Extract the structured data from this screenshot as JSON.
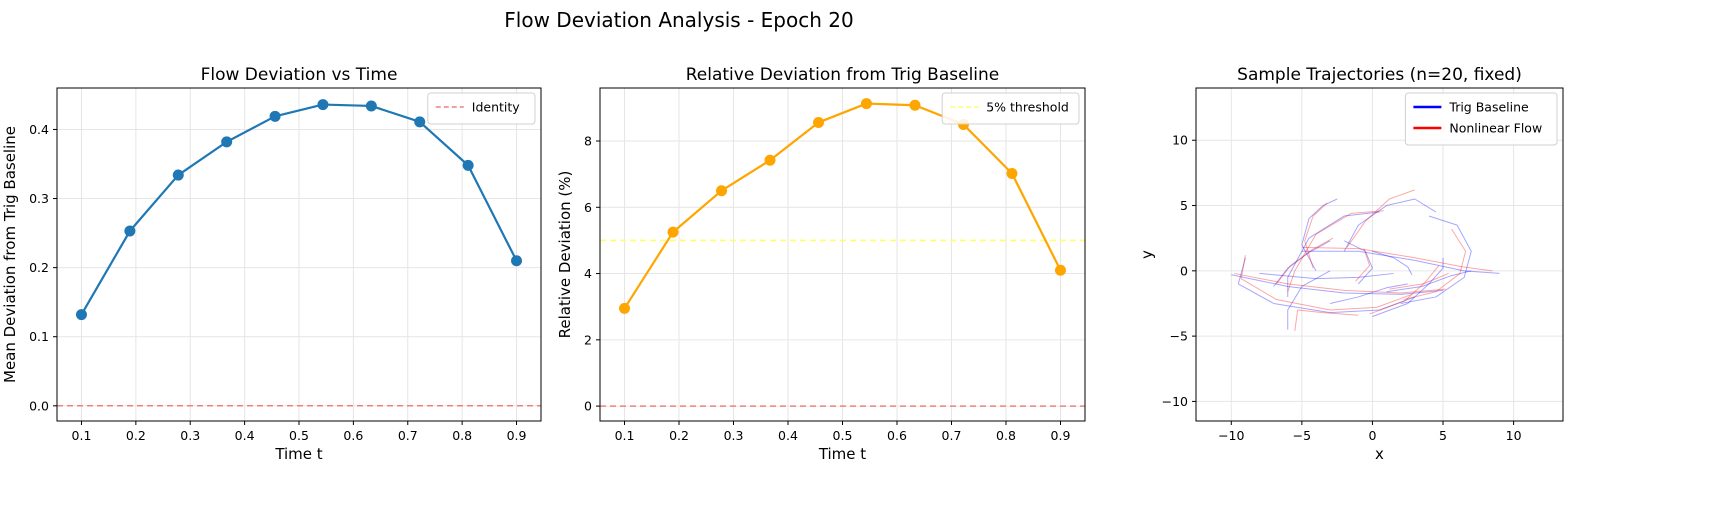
{
  "figure": {
    "suptitle": "Flow Deviation Analysis - Epoch 20"
  },
  "chart_data": [
    {
      "type": "line",
      "title": "Flow Deviation vs Time",
      "xlabel": "Time t",
      "ylabel": "Mean Deviation from Trig Baseline",
      "xlim": [
        0.055,
        0.945
      ],
      "ylim": [
        -0.022,
        0.46
      ],
      "xticks": [
        0.1,
        0.2,
        0.3,
        0.4,
        0.5,
        0.6,
        0.7,
        0.8,
        0.9
      ],
      "xtick_labels": [
        "0.1",
        "0.2",
        "0.3",
        "0.4",
        "0.5",
        "0.6",
        "0.7",
        "0.8",
        "0.9"
      ],
      "yticks": [
        0.0,
        0.1,
        0.2,
        0.3,
        0.4
      ],
      "ytick_labels": [
        "0.0",
        "0.1",
        "0.2",
        "0.3",
        "0.4"
      ],
      "grid": true,
      "legend": "top-right",
      "series": [
        {
          "values_x": [
            0.1,
            0.189,
            0.278,
            0.367,
            0.456,
            0.544,
            0.633,
            0.722,
            0.811,
            0.9
          ],
          "values_y": [
            0.132,
            0.253,
            0.334,
            0.382,
            0.419,
            0.436,
            0.434,
            0.411,
            0.348,
            0.21
          ],
          "color": "#1f77b4",
          "marker": "circle"
        }
      ],
      "reference_lines": [
        {
          "name": "Identity",
          "y": 0.0,
          "color": "#f08080",
          "style": "dashed"
        }
      ]
    },
    {
      "type": "line",
      "title": "Relative Deviation from Trig Baseline",
      "xlabel": "Time t",
      "ylabel": "Relative Deviation (%)",
      "xlim": [
        0.055,
        0.945
      ],
      "ylim": [
        -0.45,
        9.6
      ],
      "xticks": [
        0.1,
        0.2,
        0.3,
        0.4,
        0.5,
        0.6,
        0.7,
        0.8,
        0.9
      ],
      "xtick_labels": [
        "0.1",
        "0.2",
        "0.3",
        "0.4",
        "0.5",
        "0.6",
        "0.7",
        "0.8",
        "0.9"
      ],
      "yticks": [
        0,
        2,
        4,
        6,
        8
      ],
      "ytick_labels": [
        "0",
        "2",
        "4",
        "6",
        "8"
      ],
      "grid": true,
      "legend": "top-right",
      "series": [
        {
          "values_x": [
            0.1,
            0.189,
            0.278,
            0.367,
            0.456,
            0.544,
            0.633,
            0.722,
            0.811,
            0.9
          ],
          "values_y": [
            2.95,
            5.25,
            6.5,
            7.42,
            8.56,
            9.13,
            9.08,
            8.5,
            7.02,
            4.1
          ],
          "color": "#ffa500",
          "marker": "circle"
        }
      ],
      "reference_lines": [
        {
          "name": "5% threshold",
          "y": 5.0,
          "color": "#ffff66",
          "style": "dashed"
        },
        {
          "name": "",
          "y": 0.0,
          "color": "#f08080",
          "style": "dashed"
        }
      ]
    },
    {
      "type": "line",
      "title": "Sample Trajectories (n=20, fixed)",
      "xlabel": "x",
      "ylabel": "y",
      "xlim": [
        -12.5,
        13.5
      ],
      "ylim": [
        -11.5,
        14
      ],
      "xticks": [
        -10,
        -5,
        0,
        5,
        10
      ],
      "xtick_labels": [
        "−10",
        "−5",
        "0",
        "5",
        "10"
      ],
      "yticks": [
        -10,
        -5,
        0,
        5,
        10
      ],
      "ytick_labels": [
        "−10",
        "−5",
        "0",
        "5",
        "10"
      ],
      "grid": true,
      "legend": "top-right",
      "series": [
        {
          "name": "Trig Baseline",
          "color": "#0000ff",
          "trajectories": [
            [
              [
                -9,
                1
              ],
              [
                -9.5,
                -1
              ],
              [
                -7,
                -2.5
              ],
              [
                -3,
                -3.2
              ],
              [
                0.5,
                -3
              ],
              [
                3,
                -2
              ]
            ],
            [
              [
                -10,
                -0.3
              ],
              [
                -6,
                -1.2
              ],
              [
                -2,
                -1.7
              ],
              [
                2,
                -1.8
              ],
              [
                5,
                -1.5
              ]
            ],
            [
              [
                -6,
                -2
              ],
              [
                -6,
                -0.5
              ],
              [
                -4.5,
                2.5
              ],
              [
                -2,
                4.2
              ],
              [
                0.5,
                4.5
              ]
            ],
            [
              [
                -4,
                0
              ],
              [
                -5,
                2
              ],
              [
                -4.5,
                4
              ],
              [
                -3.5,
                5
              ],
              [
                -2.5,
                5.5
              ]
            ],
            [
              [
                -2,
                1.5
              ],
              [
                -1,
                3.5
              ],
              [
                1,
                5
              ],
              [
                3,
                5.5
              ],
              [
                4.5,
                4.5
              ]
            ],
            [
              [
                2,
                -2.5
              ],
              [
                4.5,
                -2
              ],
              [
                6.5,
                -0.5
              ],
              [
                7,
                1.5
              ],
              [
                6,
                3.5
              ],
              [
                4,
                4.2
              ]
            ],
            [
              [
                -5,
                1.5
              ],
              [
                -1,
                1.5
              ],
              [
                3,
                0.8
              ],
              [
                6.5,
                0
              ],
              [
                9,
                -0.2
              ]
            ],
            [
              [
                0,
                -3.5
              ],
              [
                2.5,
                -2.5
              ],
              [
                4,
                -1
              ],
              [
                5,
                0.2
              ],
              [
                5,
                1
              ]
            ],
            [
              [
                -8,
                -0.2
              ],
              [
                -4,
                -0.6
              ],
              [
                -1,
                -0.5
              ],
              [
                1.5,
                -0.2
              ]
            ],
            [
              [
                -3,
                2.3
              ],
              [
                -4.5,
                1.4
              ],
              [
                -6,
                0.2
              ],
              [
                -7,
                -1.2
              ]
            ],
            [
              [
                -1,
                -1
              ],
              [
                0,
                0.2
              ],
              [
                -0.5,
                1.5
              ],
              [
                -2,
                2.3
              ]
            ],
            [
              [
                1,
                -1.6
              ],
              [
                3.5,
                -1.2
              ],
              [
                5.5,
                -0.4
              ],
              [
                7,
                0
              ]
            ],
            [
              [
                -6,
                -4.5
              ],
              [
                -6,
                -3
              ],
              [
                -5,
                -1.2
              ],
              [
                -3,
                0
              ]
            ],
            [
              [
                0,
                1.5
              ],
              [
                1.5,
                1
              ],
              [
                2.5,
                0.3
              ],
              [
                2.8,
                -0.3
              ]
            ],
            [
              [
                -3,
                -2.5
              ],
              [
                -1,
                -2
              ],
              [
                1,
                -1.3
              ],
              [
                2.5,
                -1
              ]
            ]
          ]
        },
        {
          "name": "Nonlinear Flow",
          "color": "#ff0000",
          "trajectories": [
            [
              [
                -9,
                1.2
              ],
              [
                -9.3,
                -0.6
              ],
              [
                -6.8,
                -2.2
              ],
              [
                -3,
                -3
              ],
              [
                0.3,
                -2.8
              ],
              [
                2.8,
                -1.8
              ]
            ],
            [
              [
                -9.8,
                -0.2
              ],
              [
                -6,
                -1
              ],
              [
                -2,
                -1.5
              ],
              [
                2,
                -1.7
              ],
              [
                5.2,
                -1.4
              ]
            ],
            [
              [
                -6,
                -1.6
              ],
              [
                -5.5,
                0
              ],
              [
                -4,
                2.8
              ],
              [
                -1.5,
                4.4
              ],
              [
                0.8,
                4.6
              ]
            ],
            [
              [
                -4.2,
                0.2
              ],
              [
                -4.8,
                2.3
              ],
              [
                -4.2,
                4.2
              ],
              [
                -3.2,
                5.2
              ]
            ],
            [
              [
                -1.8,
                1.8
              ],
              [
                -0.5,
                3.8
              ],
              [
                1.2,
                5.5
              ],
              [
                3,
                6.2
              ]
            ],
            [
              [
                2.2,
                -2.2
              ],
              [
                4.5,
                -1.6
              ],
              [
                6.2,
                -0.2
              ],
              [
                6.6,
                1.5
              ],
              [
                5.6,
                3.2
              ]
            ],
            [
              [
                -5,
                1.8
              ],
              [
                -1,
                1.7
              ],
              [
                3,
                1
              ],
              [
                6.4,
                0.3
              ],
              [
                8.5,
                0
              ]
            ],
            [
              [
                -0.2,
                -3.3
              ],
              [
                2.3,
                -2.3
              ],
              [
                3.8,
                -0.8
              ],
              [
                4.7,
                0.4
              ]
            ],
            [
              [
                -5.5,
                -4.6
              ],
              [
                -5.3,
                -3
              ],
              [
                -3.5,
                -3.2
              ],
              [
                -1,
                -3.4
              ]
            ],
            [
              [
                -2.8,
                2.5
              ],
              [
                -4.3,
                1.6
              ],
              [
                -5.8,
                0.4
              ],
              [
                -6.8,
                -1
              ]
            ],
            [
              [
                -1.2,
                -0.8
              ],
              [
                -0.2,
                0.4
              ],
              [
                -0.6,
                1.7
              ]
            ],
            [
              [
                1.2,
                -1.4
              ],
              [
                3.6,
                -1
              ],
              [
                5.4,
                -0.2
              ]
            ]
          ]
        }
      ]
    }
  ]
}
